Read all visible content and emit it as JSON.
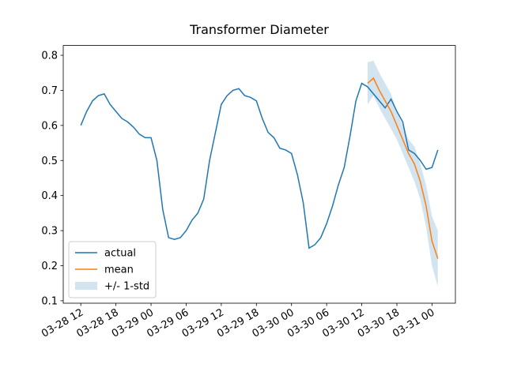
{
  "chart_data": {
    "type": "line",
    "title": "Transformer Diameter",
    "xlim": [
      "03-28 09",
      "03-31 04"
    ],
    "xticks": [
      "03-28 12",
      "03-28 18",
      "03-29 00",
      "03-29 06",
      "03-29 12",
      "03-29 18",
      "03-30 00",
      "03-30 06",
      "03-30 12",
      "03-30 18",
      "03-31 00"
    ],
    "ylim": [
      0.093,
      0.828
    ],
    "yticks": [
      0.1,
      0.2,
      0.3,
      0.4,
      0.5,
      0.6,
      0.7,
      0.8
    ],
    "legend": "lower left",
    "series": [
      {
        "name": "actual",
        "color": "#1f77b4",
        "x": [
          "03-28 12",
          "03-28 13",
          "03-28 14",
          "03-28 15",
          "03-28 16",
          "03-28 17",
          "03-28 18",
          "03-28 19",
          "03-28 20",
          "03-28 21",
          "03-28 22",
          "03-28 23",
          "03-29 00",
          "03-29 01",
          "03-29 02",
          "03-29 03",
          "03-29 04",
          "03-29 05",
          "03-29 06",
          "03-29 07",
          "03-29 08",
          "03-29 09",
          "03-29 10",
          "03-29 11",
          "03-29 12",
          "03-29 13",
          "03-29 14",
          "03-29 15",
          "03-29 16",
          "03-29 17",
          "03-29 18",
          "03-29 19",
          "03-29 20",
          "03-29 21",
          "03-29 22",
          "03-29 23",
          "03-30 00",
          "03-30 01",
          "03-30 02",
          "03-30 03",
          "03-30 04",
          "03-30 05",
          "03-30 06",
          "03-30 07",
          "03-30 08",
          "03-30 09",
          "03-30 10",
          "03-30 11",
          "03-30 12",
          "03-30 13",
          "03-30 14",
          "03-30 15",
          "03-30 16",
          "03-30 17",
          "03-30 18",
          "03-30 19",
          "03-30 20",
          "03-30 21",
          "03-30 22",
          "03-30 23",
          "03-31 00",
          "03-31 01"
        ],
        "values": [
          0.6,
          0.64,
          0.67,
          0.685,
          0.69,
          0.66,
          0.64,
          0.62,
          0.61,
          0.595,
          0.575,
          0.565,
          0.565,
          0.5,
          0.36,
          0.28,
          0.275,
          0.28,
          0.3,
          0.33,
          0.35,
          0.39,
          0.5,
          0.58,
          0.66,
          0.685,
          0.7,
          0.705,
          0.685,
          0.68,
          0.67,
          0.62,
          0.58,
          0.565,
          0.535,
          0.53,
          0.52,
          0.46,
          0.38,
          0.25,
          0.26,
          0.28,
          0.32,
          0.37,
          0.43,
          0.48,
          0.57,
          0.67,
          0.72,
          0.71,
          0.69,
          0.67,
          0.65,
          0.675,
          0.64,
          0.61,
          0.53,
          0.52,
          0.5,
          0.475,
          0.48,
          0.53
        ]
      },
      {
        "name": "mean",
        "color": "#ff7f0e",
        "x": [
          "03-30 13",
          "03-30 14",
          "03-30 15",
          "03-30 16",
          "03-30 17",
          "03-30 18",
          "03-30 19",
          "03-30 20",
          "03-30 21",
          "03-30 22",
          "03-30 23",
          "03-31 00",
          "03-31 01"
        ],
        "values": [
          0.72,
          0.735,
          0.7,
          0.67,
          0.64,
          0.6,
          0.56,
          0.52,
          0.49,
          0.44,
          0.37,
          0.27,
          0.22
        ]
      }
    ],
    "band": {
      "name": "+/- 1-std",
      "color": "#1f77b4",
      "x": [
        "03-30 13",
        "03-30 14",
        "03-30 15",
        "03-30 16",
        "03-30 17",
        "03-30 18",
        "03-30 19",
        "03-30 20",
        "03-30 21",
        "03-30 22",
        "03-30 23",
        "03-31 00",
        "03-31 01"
      ],
      "lower": [
        0.66,
        0.685,
        0.65,
        0.62,
        0.59,
        0.56,
        0.52,
        0.48,
        0.44,
        0.39,
        0.31,
        0.2,
        0.14
      ],
      "upper": [
        0.78,
        0.785,
        0.75,
        0.72,
        0.69,
        0.64,
        0.6,
        0.56,
        0.54,
        0.49,
        0.43,
        0.34,
        0.3
      ]
    }
  }
}
